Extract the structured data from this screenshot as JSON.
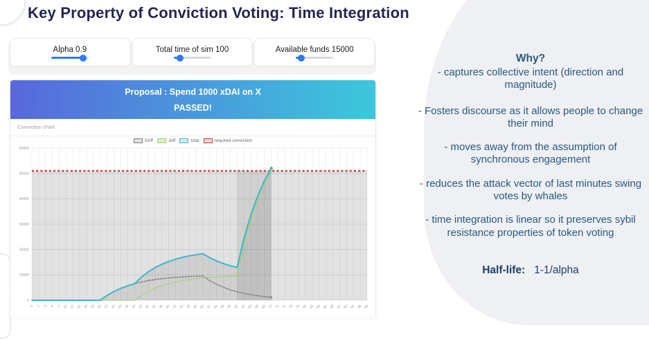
{
  "page": {
    "title": "Key Property of Conviction Voting: Time Integration"
  },
  "controls": {
    "sliders": [
      {
        "label": "Alpha 0.9",
        "fill_pct": 85
      },
      {
        "label": "Total time of sim 100",
        "fill_pct": 18
      },
      {
        "label": "Available funds 15000",
        "fill_pct": 15
      }
    ]
  },
  "proposal": {
    "title": "Proposal : Spend 1000 xDAI on X",
    "status": "PASSED!"
  },
  "chart_panel": {
    "toolbar_label": "Conviction chart"
  },
  "chart_data": {
    "type": "line",
    "title": "Conviction chart",
    "x": [
      0,
      2,
      4,
      6,
      8,
      10,
      12,
      14,
      16,
      18,
      20,
      22,
      24,
      26,
      28,
      30,
      32,
      34,
      36,
      38,
      40,
      42,
      44,
      46,
      48,
      50,
      52,
      54,
      56,
      58,
      60,
      62,
      64,
      66,
      68,
      70,
      72,
      74,
      76,
      78,
      80,
      82,
      84,
      86,
      88,
      90,
      92,
      94,
      96,
      98
    ],
    "ylim": [
      0,
      60000
    ],
    "yticks": [
      0,
      10000,
      20000,
      30000,
      40000,
      50000,
      60000
    ],
    "grid": true,
    "legend_position": "top",
    "highlight_band": {
      "x_from": 60,
      "x_to": 70
    },
    "series": [
      {
        "name": "Griff",
        "color": "#7d7d7d",
        "fill_color": "#e0e0e0",
        "style": "dotted",
        "values": [
          0,
          0,
          0,
          0,
          0,
          0,
          0,
          0,
          0,
          0,
          0,
          1900,
          3439,
          4686,
          5695,
          6513,
          7176,
          7712,
          8147,
          8499,
          8784,
          9015,
          9202,
          9354,
          9477,
          9576,
          7757,
          6283,
          5089,
          4122,
          3339,
          2705,
          2191,
          1775,
          1437,
          1164
        ]
      },
      {
        "name": "Jeff",
        "color": "#a2d36d",
        "fill_color": "#ddeecb",
        "style": "dotted",
        "values": [
          0,
          0,
          0,
          0,
          0,
          0,
          0,
          0,
          0,
          0,
          0,
          0,
          0,
          0,
          0,
          0,
          1900,
          3439,
          4686,
          5695,
          6513,
          7176,
          7712,
          8147,
          8499,
          8784,
          9015,
          9202,
          9354,
          9477,
          9576,
          21626,
          31385,
          39296,
          45696,
          50884
        ]
      },
      {
        "name": "total",
        "color": "#3ab7c9",
        "fill_color": "#cfeef2",
        "style": "solid",
        "values": [
          0,
          0,
          0,
          0,
          0,
          0,
          0,
          0,
          0,
          0,
          0,
          1900,
          3439,
          4686,
          5695,
          6513,
          9076,
          11151,
          12833,
          14194,
          15297,
          16191,
          16914,
          17501,
          17976,
          18360,
          16772,
          15485,
          14443,
          13599,
          12915,
          24331,
          33576,
          41071,
          47133,
          52048
        ]
      },
      {
        "name": "required conviction",
        "color": "#c43c3c",
        "fill_color": "#f2d7d7",
        "style": "dashed",
        "constant": 51000
      }
    ]
  },
  "side_panel": {
    "heading": "Why?",
    "bullets": [
      "- captures collective intent (direction and magnitude)",
      "- Fosters discourse as it allows people to change their mind",
      "- moves away from the assumption of synchronous engagement",
      "- reduces the attack vector of last minutes swing votes by whales",
      "- time integration is linear so it preserves sybil resistance properties of token voting"
    ],
    "halflife_label": "Half-life:",
    "halflife_value": "1-1/alpha"
  },
  "colors": {
    "header_gradient_start": "#5868dd",
    "header_gradient_end": "#3bc8db",
    "title_text": "#262550",
    "side_text": "#2a5881",
    "slider_accent": "#2b7bf3"
  }
}
